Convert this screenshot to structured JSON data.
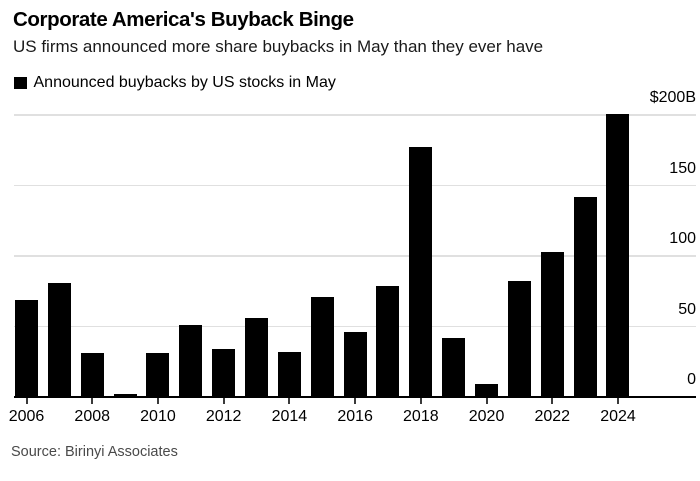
{
  "chart_data": {
    "type": "bar",
    "title": "Corporate America's Buyback Binge",
    "subtitle": "US firms announced more share buybacks in May than they ever have",
    "legend": [
      {
        "label": "Announced buybacks by US stocks in May",
        "color": "#000000"
      }
    ],
    "legend_position": "top-left",
    "source": "Source: Birinyi Associates",
    "xlabel": "",
    "ylabel": "",
    "unit": "billions of US dollars",
    "categories": [
      "2006",
      "2007",
      "2008",
      "2009",
      "2010",
      "2011",
      "2012",
      "2013",
      "2014",
      "2015",
      "2016",
      "2017",
      "2018",
      "2019",
      "2020",
      "2021",
      "2022",
      "2023",
      "2024"
    ],
    "values": [
      69,
      81,
      31,
      2,
      31,
      51,
      34,
      56,
      32,
      71,
      46,
      79,
      177,
      42,
      9,
      82,
      103,
      142,
      201
    ],
    "ylim": [
      0,
      210
    ],
    "yticks": [
      {
        "value": 0,
        "label": "0"
      },
      {
        "value": 50,
        "label": "50"
      },
      {
        "value": 100,
        "label": "100"
      },
      {
        "value": 150,
        "label": "150"
      },
      {
        "value": 200,
        "label": "$200B"
      }
    ],
    "x_labeled_ticks": [
      "2006",
      "2008",
      "2010",
      "2012",
      "2014",
      "2016",
      "2018",
      "2020",
      "2022",
      "2024"
    ],
    "grid": true,
    "colors": {
      "bar": "#000000",
      "gridline": "#e0e0e0",
      "baseline": "#000000",
      "tick": "#3a3a3a",
      "axis_text": "#000000",
      "title_text": "#000000",
      "subtitle_text": "#1a1a1a",
      "source_text": "#4a4a4a",
      "background": "#ffffff"
    }
  }
}
